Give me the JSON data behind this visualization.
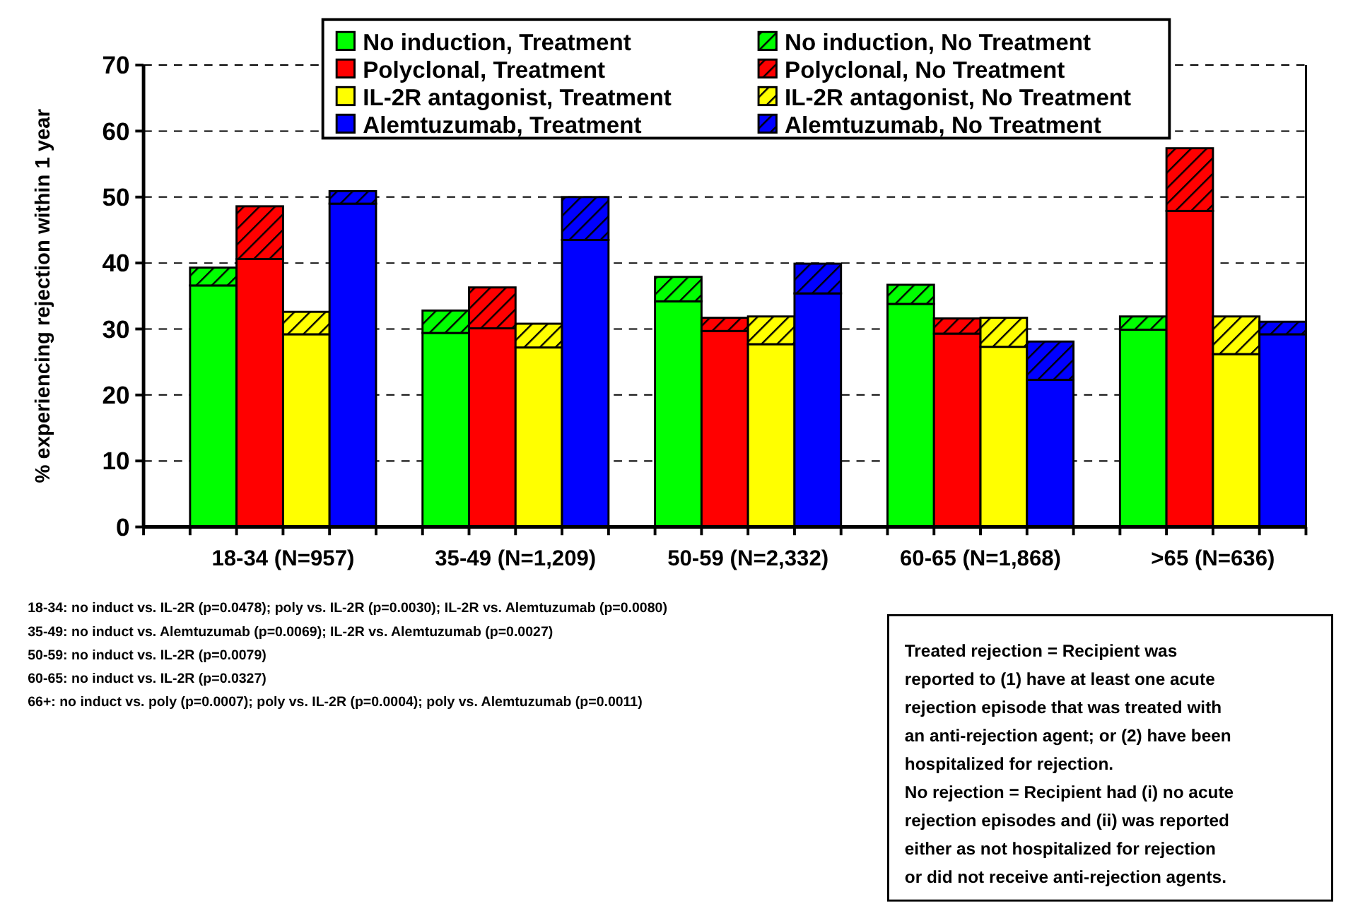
{
  "chart_data": {
    "type": "bar",
    "stacked": true,
    "ylabel": "% experiencing rejection within 1 year",
    "categories": [
      null,
      null,
      null,
      null,
      null,
      null,
      null,
      null,
      null,
      null,
      null,
      null,
      null,
      null,
      null,
      null,
      null,
      null,
      null,
      null,
      null,
      null,
      null,
      null,
      null
    ],
    "ylim": [
      0,
      70
    ],
    "yticks": [
      0,
      10,
      20,
      30,
      40,
      50,
      60,
      70
    ],
    "grid": "y",
    "legend": "top",
    "series": [
      {
        "name": "No induction, Treatment",
        "color": "#00ff00",
        "values": [
          null,
          36.6,
          null,
          null,
          null,
          null,
          29.4,
          null,
          null,
          null,
          null,
          34.2,
          null,
          null,
          null,
          null,
          33.8,
          null,
          null,
          null,
          null,
          29.9,
          null,
          null,
          null
        ]
      },
      {
        "name": "No induction, No Treatment",
        "color": "#00ff00",
        "values": [
          null,
          2.7,
          null,
          null,
          null,
          null,
          3.4,
          null,
          null,
          null,
          null,
          3.7,
          null,
          null,
          null,
          null,
          2.9,
          null,
          null,
          null,
          null,
          2.0,
          null,
          null,
          null
        ]
      },
      {
        "name": "Polyclonal, Treatment",
        "color": "#ff0000",
        "values": [
          null,
          null,
          40.6,
          null,
          null,
          null,
          null,
          30.1,
          null,
          null,
          null,
          null,
          29.7,
          null,
          null,
          null,
          null,
          29.3,
          null,
          null,
          null,
          null,
          47.9,
          null,
          null
        ]
      },
      {
        "name": "Polyclonal, No Treatment",
        "color": "#ff0000",
        "values": [
          null,
          null,
          8.0,
          null,
          null,
          null,
          null,
          6.2,
          null,
          null,
          null,
          null,
          2.0,
          null,
          null,
          null,
          null,
          2.3,
          null,
          null,
          null,
          null,
          9.5,
          null,
          null
        ]
      },
      {
        "name": "IL-2R antagonist, Treatment",
        "color": "#ffff00",
        "values": [
          null,
          null,
          null,
          29.2,
          null,
          null,
          null,
          null,
          27.2,
          null,
          null,
          null,
          null,
          27.7,
          null,
          null,
          null,
          null,
          27.3,
          null,
          null,
          null,
          null,
          26.2,
          null
        ]
      },
      {
        "name": "IL-2R antagonist, No Treatment",
        "color": "#ffff00",
        "values": [
          null,
          null,
          null,
          3.4,
          null,
          null,
          null,
          null,
          3.6,
          null,
          null,
          null,
          null,
          4.2,
          null,
          null,
          null,
          null,
          4.4,
          null,
          null,
          null,
          null,
          5.7,
          null
        ]
      },
      {
        "name": "Alemtuzumab, Treatment",
        "color": "#0000ff",
        "values": [
          null,
          null,
          null,
          null,
          49.0,
          null,
          null,
          null,
          null,
          43.5,
          null,
          null,
          null,
          null,
          35.4,
          null,
          null,
          null,
          null,
          22.3,
          null,
          null,
          null,
          null,
          29.2
        ]
      },
      {
        "name": "Alemtuzumab, No Treatment",
        "color": "#0000ff",
        "values": [
          null,
          null,
          null,
          null,
          1.9,
          null,
          null,
          null,
          null,
          6.5,
          null,
          null,
          null,
          null,
          4.5,
          null,
          null,
          null,
          null,
          5.8,
          null,
          null,
          null,
          null,
          1.9
        ]
      }
    ],
    "annotations": [
      "18-34 (N=957)",
      "35-49 (N=1,209)",
      "50-59 (N=2,332)",
      "60-65 (N=1,868)",
      ">65 (N=636)",
      "18-34: no induct vs. IL-2R (p=0.0478); poly vs. IL-2R (p=0.0030); IL-2R vs. Alemtuzumab (p=0.0080)",
      "35-49: no induct vs. Alemtuzumab (p=0.0069); IL-2R vs. Alemtuzumab (p=0.0027)",
      "50-59: no induct vs. IL-2R (p=0.0079)",
      "60-65: no induct vs. IL-2R (p=0.0327)",
      "66+: no induct vs. poly (p=0.0007);  poly vs. IL-2R (p=0.0004); poly vs. Alemtuzumab (p=0.0011)",
      "Treated rejection = Recipient was reported to (1) have at least one acute rejection episode that was treated with an anti-rejection agent; or (2) have been hospitalized for rejection.",
      "No rejection = Recipient had (i) no acute rejection episodes and (ii) was reported either as not hospitalized for rejection or did not receive anti-rejection agents."
    ]
  }
}
